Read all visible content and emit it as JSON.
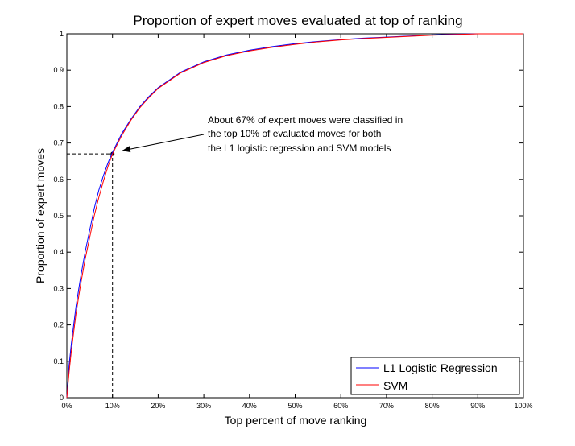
{
  "chart_data": {
    "type": "line",
    "title": "Proportion of expert moves evaluated at top of ranking",
    "xlabel": "Top percent of move ranking",
    "ylabel": "Proportion of expert moves",
    "xlim": [
      0,
      100
    ],
    "ylim": [
      0,
      1
    ],
    "x_ticks": [
      "0%",
      "10%",
      "20%",
      "30%",
      "40%",
      "50%",
      "60%",
      "70%",
      "80%",
      "90%",
      "100%"
    ],
    "y_ticks": [
      "0",
      "0.1",
      "0.2",
      "0.3",
      "0.4",
      "0.5",
      "0.6",
      "0.7",
      "0.8",
      "0.9",
      "1"
    ],
    "grid": false,
    "legend_position": "bottom-right",
    "x": [
      0,
      0.5,
      1,
      2,
      3,
      4,
      5,
      6,
      7,
      8,
      9,
      10,
      12,
      14,
      16,
      18,
      20,
      25,
      30,
      35,
      40,
      45,
      50,
      55,
      60,
      65,
      70,
      75,
      80,
      85,
      90,
      95,
      100
    ],
    "series": [
      {
        "name": "L1 Logistic Regression",
        "color": "#0000ff",
        "values": [
          0,
          0.09,
          0.15,
          0.25,
          0.33,
          0.4,
          0.46,
          0.52,
          0.57,
          0.61,
          0.645,
          0.675,
          0.725,
          0.765,
          0.8,
          0.828,
          0.852,
          0.895,
          0.923,
          0.942,
          0.955,
          0.965,
          0.973,
          0.979,
          0.984,
          0.988,
          0.991,
          0.994,
          0.997,
          0.999,
          1,
          1,
          1
        ]
      },
      {
        "name": "SVM",
        "color": "#ff0000",
        "values": [
          0,
          0.07,
          0.13,
          0.23,
          0.31,
          0.38,
          0.44,
          0.5,
          0.55,
          0.595,
          0.635,
          0.67,
          0.72,
          0.762,
          0.797,
          0.825,
          0.85,
          0.893,
          0.921,
          0.94,
          0.953,
          0.963,
          0.971,
          0.978,
          0.983,
          0.987,
          0.99,
          0.993,
          0.996,
          0.998,
          1,
          1,
          1
        ]
      }
    ],
    "annotation": {
      "lines": [
        "About 67% of expert moves were classified in",
        "the top 10% of evaluated moves for both",
        "the L1 logistic regression and SVM models"
      ],
      "point": {
        "x": 10,
        "y": 0.67
      }
    }
  }
}
